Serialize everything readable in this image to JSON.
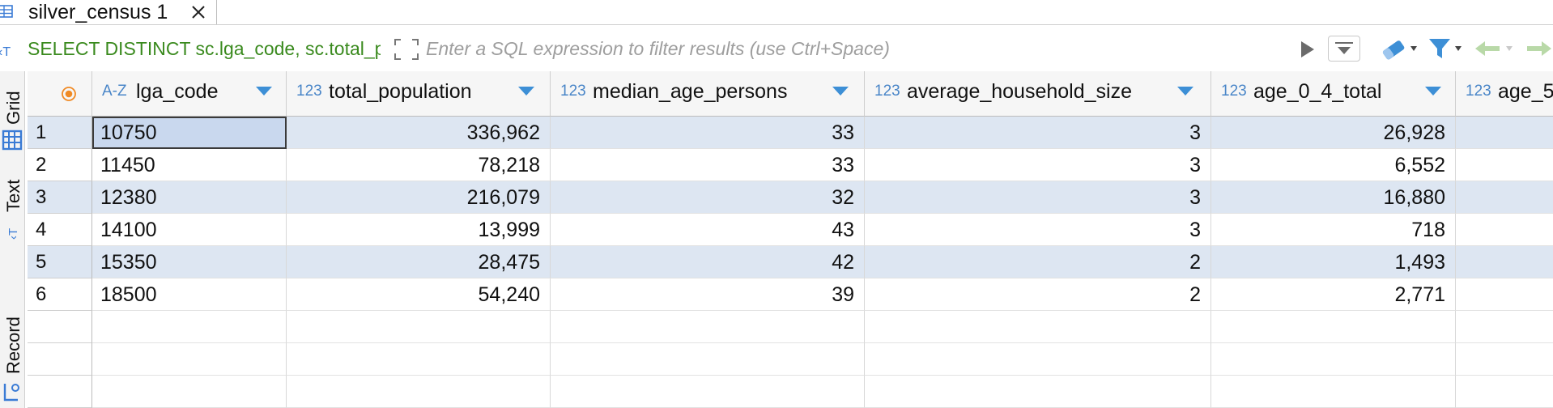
{
  "tab": {
    "title": "silver_census 1"
  },
  "filter": {
    "sql_text": "SELECT DISTINCT sc.lga_code, sc.total_population, sc.median_age_persons, sc.average_household_size, sc.age_0_4_total",
    "placeholder": "Enter a SQL expression to filter results (use Ctrl+Space)"
  },
  "side_tabs": {
    "grid": "Grid",
    "text": "Text",
    "record": "Record"
  },
  "grid": {
    "columns": [
      {
        "type": "A-Z",
        "name": "lga_code"
      },
      {
        "type": "123",
        "name": "total_population"
      },
      {
        "type": "123",
        "name": "median_age_persons"
      },
      {
        "type": "123",
        "name": "average_household_size"
      },
      {
        "type": "123",
        "name": "age_0_4_total"
      },
      {
        "type": "123",
        "name": "age_5"
      }
    ],
    "rows": [
      {
        "n": "1",
        "cells": [
          "10750",
          "336,962",
          "33",
          "3",
          "26,928",
          ""
        ]
      },
      {
        "n": "2",
        "cells": [
          "11450",
          "78,218",
          "33",
          "3",
          "6,552",
          ""
        ]
      },
      {
        "n": "3",
        "cells": [
          "12380",
          "216,079",
          "32",
          "3",
          "16,880",
          ""
        ]
      },
      {
        "n": "4",
        "cells": [
          "14100",
          "13,999",
          "43",
          "3",
          "718",
          ""
        ]
      },
      {
        "n": "5",
        "cells": [
          "15350",
          "28,475",
          "42",
          "2",
          "1,493",
          ""
        ]
      },
      {
        "n": "6",
        "cells": [
          "18500",
          "54,240",
          "39",
          "2",
          "2,771",
          ""
        ]
      }
    ]
  },
  "colors": {
    "accent": "#3d8fd6",
    "sql_green": "#3a8a1e",
    "row_alt": "#dde6f2",
    "marker_orange": "#f08a24"
  }
}
